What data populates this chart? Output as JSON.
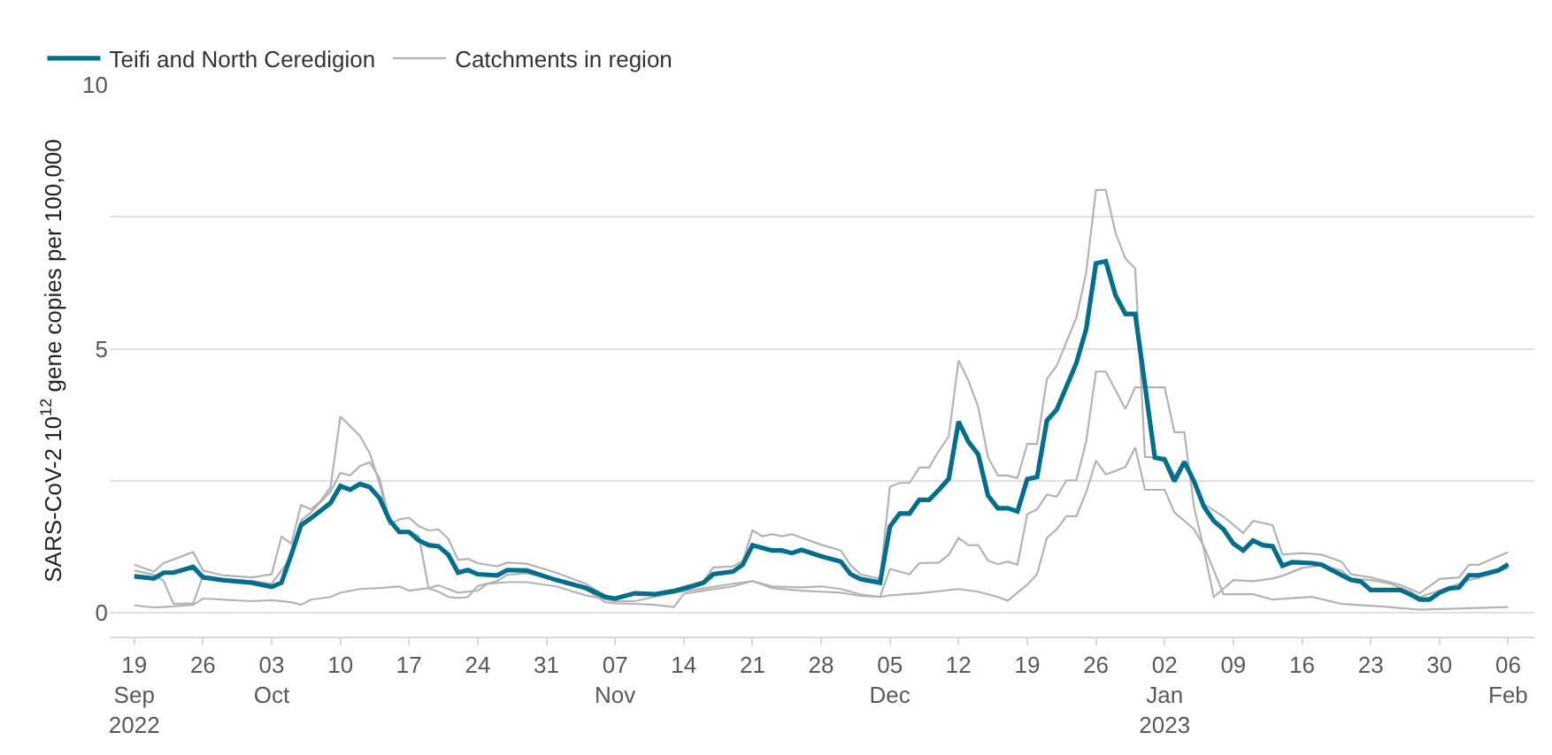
{
  "chart_data": {
    "type": "line",
    "ylabel": "SARS-CoV-2 10$^{12}$ gene copies per 100,000",
    "legend": "top left",
    "grid": "y",
    "marker": "none",
    "line_style": "solid",
    "xlim": [
      "2022-09-16T12:00",
      "2023-02-08T16:00"
    ],
    "ylim": [
      -0.45,
      10
    ],
    "yticks": [
      0,
      {
        "value": 2.5,
        "label": null
      },
      5,
      {
        "value": 7.5,
        "label": null
      },
      10
    ],
    "xticks": [
      {
        "value": "2022-09-19",
        "label": "19\nSep\n2022"
      },
      {
        "value": "2022-09-26",
        "label": "26"
      },
      {
        "value": "2022-10-03",
        "label": "03\nOct"
      },
      {
        "value": "2022-10-10",
        "label": "10"
      },
      {
        "value": "2022-10-17",
        "label": "17"
      },
      {
        "value": "2022-10-24",
        "label": "24"
      },
      {
        "value": "2022-10-31",
        "label": "31"
      },
      {
        "value": "2022-11-07",
        "label": "07\nNov"
      },
      {
        "value": "2022-11-14",
        "label": "14"
      },
      {
        "value": "2022-11-21",
        "label": "21"
      },
      {
        "value": "2022-11-28",
        "label": "28"
      },
      {
        "value": "2022-12-05",
        "label": "05\nDec"
      },
      {
        "value": "2022-12-12",
        "label": "12"
      },
      {
        "value": "2022-12-19",
        "label": "19"
      },
      {
        "value": "2022-12-26",
        "label": "26"
      },
      {
        "value": "2023-01-02",
        "label": "02\nJan\n2023"
      },
      {
        "value": "2023-01-09",
        "label": "09"
      },
      {
        "value": "2023-01-16",
        "label": "16"
      },
      {
        "value": "2023-01-23",
        "label": "23"
      },
      {
        "value": "2023-01-30",
        "label": "30"
      },
      {
        "value": "2023-02-06",
        "label": "06\nFeb"
      }
    ],
    "series": [
      {
        "name": "Catchments in region",
        "color": "#b3b3b3",
        "x": [
          "2022-09-19",
          "2022-09-21",
          "2022-09-22",
          "2022-09-25",
          "2022-09-26",
          "2022-09-28",
          "2022-10-01",
          "2022-10-03",
          "2022-10-04",
          "2022-10-05",
          "2022-10-06",
          "2022-10-07",
          "2022-10-08",
          "2022-10-09",
          "2022-10-10",
          "2022-10-12",
          "2022-10-13",
          "2022-10-14",
          "2022-10-15",
          "2022-10-16",
          "2022-10-17",
          "2022-10-18",
          "2022-10-19",
          "2022-10-20",
          "2022-10-21",
          "2022-10-22",
          "2022-10-23",
          "2022-10-24",
          "2022-10-26",
          "2022-10-27",
          "2022-10-29",
          "2022-11-01",
          "2022-11-04",
          "2022-11-06",
          "2022-11-07",
          "2022-11-09",
          "2022-11-11",
          "2022-11-13",
          "2022-11-15",
          "2022-11-16",
          "2022-11-17",
          "2022-11-19",
          "2022-11-20",
          "2022-11-21",
          "2022-11-22",
          "2022-11-23",
          "2022-11-24",
          "2022-11-25",
          "2022-11-26",
          "2022-11-28",
          "2022-11-30",
          "2022-12-01",
          "2022-12-02",
          "2022-12-04",
          "2022-12-05",
          "2022-12-06",
          "2022-12-07",
          "2022-12-08",
          "2022-12-09",
          "2022-12-10",
          "2022-12-11",
          "2022-12-12",
          "2022-12-13",
          "2022-12-14",
          "2022-12-15",
          "2022-12-16",
          "2022-12-17",
          "2022-12-18",
          "2022-12-19",
          "2022-12-20",
          "2022-12-21",
          "2022-12-22",
          "2022-12-24",
          "2022-12-25",
          "2022-12-26",
          "2022-12-27",
          "2022-12-28",
          "2022-12-29",
          "2022-12-30",
          "2022-12-31",
          "2023-01-02",
          "2023-01-03",
          "2023-01-04",
          "2023-01-05",
          "2023-01-06",
          "2023-01-08",
          "2023-01-10",
          "2023-01-11",
          "2023-01-13",
          "2023-01-14",
          "2023-01-16",
          "2023-01-18",
          "2023-01-20",
          "2023-01-21",
          "2023-01-23",
          "2023-01-26",
          "2023-01-28",
          "2023-01-30",
          "2023-02-01",
          "2023-02-02",
          "2023-02-03",
          "2023-02-06"
        ],
        "values": [
          0.91,
          0.78,
          0.94,
          1.15,
          0.8,
          0.71,
          0.67,
          0.73,
          1.44,
          1.31,
          2.04,
          1.96,
          2.12,
          2.38,
          3.72,
          3.35,
          3.02,
          2.45,
          1.67,
          1.77,
          1.8,
          1.64,
          1.56,
          1.58,
          1.4,
          1.0,
          1.02,
          0.94,
          0.88,
          0.95,
          0.93,
          0.76,
          0.55,
          0.32,
          0.28,
          0.38,
          0.37,
          0.44,
          0.55,
          0.6,
          0.86,
          0.88,
          0.98,
          1.56,
          1.45,
          1.49,
          1.45,
          1.49,
          1.42,
          1.29,
          1.18,
          0.9,
          0.73,
          0.64,
          2.39,
          2.46,
          2.46,
          2.75,
          2.75,
          3.07,
          3.34,
          4.78,
          4.4,
          3.9,
          2.95,
          2.6,
          2.6,
          2.55,
          3.2,
          3.2,
          4.43,
          4.68,
          5.59,
          6.44,
          8.01,
          8.01,
          7.19,
          6.71,
          6.52,
          2.95,
          2.95,
          2.6,
          2.85,
          2.49,
          2.06,
          1.82,
          1.51,
          1.74,
          1.66,
          1.1,
          1.13,
          1.1,
          0.97,
          0.73,
          0.67,
          0.53,
          0.37,
          0.64,
          0.67,
          0.91,
          0.91,
          1.15
        ]
      },
      {
        "color": "#b3b3b3",
        "x": [
          "2022-09-19",
          "2022-09-21",
          "2022-09-22",
          "2022-09-23",
          "2022-09-25",
          "2022-09-26",
          "2022-09-28",
          "2022-10-01",
          "2022-10-03",
          "2022-10-05",
          "2022-10-06",
          "2022-10-07",
          "2022-10-09",
          "2022-10-10",
          "2022-10-11",
          "2022-10-12",
          "2022-10-13",
          "2022-10-14",
          "2022-10-15",
          "2022-10-16",
          "2022-10-17",
          "2022-10-18",
          "2022-10-19",
          "2022-10-20",
          "2022-10-21",
          "2022-10-22",
          "2022-10-23",
          "2022-10-24",
          "2022-10-26",
          "2022-10-27",
          "2022-10-29",
          "2022-11-01",
          "2022-11-04",
          "2022-11-06",
          "2022-11-07",
          "2022-11-09",
          "2022-11-11",
          "2022-11-13",
          "2022-11-14",
          "2022-11-16",
          "2022-11-19",
          "2022-11-21",
          "2022-11-23",
          "2022-11-26",
          "2022-11-28",
          "2022-11-30",
          "2022-12-02",
          "2022-12-04",
          "2022-12-05",
          "2022-12-07",
          "2022-12-08",
          "2022-12-10",
          "2022-12-11",
          "2022-12-12",
          "2022-12-13",
          "2022-12-14",
          "2022-12-15",
          "2022-12-16",
          "2022-12-17",
          "2022-12-18",
          "2022-12-19",
          "2022-12-20",
          "2022-12-21",
          "2022-12-22",
          "2022-12-23",
          "2022-12-24",
          "2022-12-25",
          "2022-12-26",
          "2022-12-27",
          "2022-12-29",
          "2022-12-30",
          "2023-01-02",
          "2023-01-03",
          "2023-01-04",
          "2023-01-05",
          "2023-01-06",
          "2023-01-07",
          "2023-01-09",
          "2023-01-11",
          "2023-01-13",
          "2023-01-14",
          "2023-01-16",
          "2023-01-18",
          "2023-01-20",
          "2023-01-21",
          "2023-01-23",
          "2023-01-25",
          "2023-01-27",
          "2023-01-28",
          "2023-01-30",
          "2023-02-01",
          "2023-02-02",
          "2023-02-03",
          "2023-02-06"
        ],
        "values": [
          0.8,
          0.72,
          0.6,
          0.17,
          0.18,
          0.7,
          0.63,
          0.6,
          0.55,
          1.05,
          1.75,
          1.9,
          2.3,
          2.65,
          2.6,
          2.78,
          2.85,
          2.55,
          1.75,
          1.55,
          1.55,
          1.45,
          0.46,
          0.4,
          0.3,
          0.28,
          0.3,
          0.51,
          0.6,
          0.72,
          0.75,
          0.62,
          0.45,
          0.2,
          0.18,
          0.17,
          0.15,
          0.11,
          0.36,
          0.42,
          0.5,
          0.6,
          0.47,
          0.42,
          0.4,
          0.38,
          0.32,
          0.3,
          0.83,
          0.73,
          0.94,
          0.95,
          1.1,
          1.42,
          1.28,
          1.28,
          0.99,
          0.92,
          0.97,
          0.91,
          1.87,
          1.96,
          2.24,
          2.2,
          2.51,
          2.51,
          3.24,
          4.57,
          4.57,
          3.86,
          4.27,
          4.27,
          3.42,
          3.42,
          2.0,
          1.2,
          0.3,
          0.62,
          0.6,
          0.65,
          0.7,
          0.85,
          0.9,
          0.8,
          0.65,
          0.62,
          0.55,
          0.4,
          0.3,
          0.42,
          0.55,
          0.62,
          0.66,
          0.85
        ]
      },
      {
        "color": "#b3b3b3",
        "x": [
          "2022-09-19",
          "2022-09-21",
          "2022-09-23",
          "2022-09-25",
          "2022-09-26",
          "2022-09-28",
          "2022-10-01",
          "2022-10-03",
          "2022-10-05",
          "2022-10-06",
          "2022-10-07",
          "2022-10-09",
          "2022-10-10",
          "2022-10-12",
          "2022-10-14",
          "2022-10-16",
          "2022-10-17",
          "2022-10-19",
          "2022-10-20",
          "2022-10-21",
          "2022-10-22",
          "2022-10-24",
          "2022-10-25",
          "2022-10-27",
          "2022-10-29",
          "2022-11-01",
          "2022-11-04",
          "2022-11-07",
          "2022-11-09",
          "2022-11-11",
          "2022-11-13",
          "2022-11-16",
          "2022-11-19",
          "2022-11-21",
          "2022-11-23",
          "2022-11-26",
          "2022-11-28",
          "2022-11-30",
          "2022-12-02",
          "2022-12-04",
          "2022-12-05",
          "2022-12-08",
          "2022-12-12",
          "2022-12-14",
          "2022-12-16",
          "2022-12-17",
          "2022-12-19",
          "2022-12-20",
          "2022-12-21",
          "2022-12-22",
          "2022-12-23",
          "2022-12-24",
          "2022-12-25",
          "2022-12-26",
          "2022-12-27",
          "2022-12-29",
          "2022-12-30",
          "2022-12-31",
          "2023-01-02",
          "2023-01-03",
          "2023-01-05",
          "2023-01-06",
          "2023-01-08",
          "2023-01-09",
          "2023-01-11",
          "2023-01-13",
          "2023-01-17",
          "2023-01-20",
          "2023-01-24",
          "2023-01-28",
          "2023-02-06"
        ],
        "values": [
          0.14,
          0.1,
          0.12,
          0.15,
          0.27,
          0.25,
          0.22,
          0.24,
          0.2,
          0.15,
          0.25,
          0.3,
          0.38,
          0.45,
          0.47,
          0.5,
          0.42,
          0.47,
          0.52,
          0.45,
          0.38,
          0.42,
          0.55,
          0.58,
          0.58,
          0.5,
          0.33,
          0.22,
          0.22,
          0.3,
          0.38,
          0.46,
          0.55,
          0.6,
          0.5,
          0.48,
          0.5,
          0.45,
          0.35,
          0.3,
          0.33,
          0.37,
          0.45,
          0.4,
          0.3,
          0.23,
          0.53,
          0.73,
          1.42,
          1.58,
          1.83,
          1.83,
          2.28,
          2.88,
          2.62,
          2.76,
          3.13,
          2.33,
          2.33,
          1.9,
          1.58,
          1.26,
          0.35,
          0.35,
          0.35,
          0.25,
          0.3,
          0.17,
          0.12,
          0.06,
          0.11
        ]
      },
      {
        "name": "Teifi and North Ceredigion",
        "color": "#006e8c",
        "x": [
          "2022-09-19",
          "2022-09-21",
          "2022-09-22",
          "2022-09-23",
          "2022-09-25",
          "2022-09-26",
          "2022-09-28",
          "2022-10-01",
          "2022-10-03",
          "2022-10-04",
          "2022-10-05",
          "2022-10-06",
          "2022-10-07",
          "2022-10-09",
          "2022-10-10",
          "2022-10-11",
          "2022-10-12",
          "2022-10-13",
          "2022-10-14",
          "2022-10-15",
          "2022-10-16",
          "2022-10-17",
          "2022-10-18",
          "2022-10-19",
          "2022-10-20",
          "2022-10-21",
          "2022-10-22",
          "2022-10-23",
          "2022-10-24",
          "2022-10-26",
          "2022-10-27",
          "2022-10-29",
          "2022-11-01",
          "2022-11-04",
          "2022-11-06",
          "2022-11-07",
          "2022-11-09",
          "2022-11-11",
          "2022-11-13",
          "2022-11-15",
          "2022-11-16",
          "2022-11-17",
          "2022-11-19",
          "2022-11-20",
          "2022-11-21",
          "2022-11-22",
          "2022-11-23",
          "2022-11-24",
          "2022-11-25",
          "2022-11-26",
          "2022-11-28",
          "2022-11-30",
          "2022-12-01",
          "2022-12-02",
          "2022-12-04",
          "2022-12-05",
          "2022-12-06",
          "2022-12-07",
          "2022-12-08",
          "2022-12-09",
          "2022-12-10",
          "2022-12-11",
          "2022-12-12",
          "2022-12-13",
          "2022-12-14",
          "2022-12-15",
          "2022-12-16",
          "2022-12-17",
          "2022-12-18",
          "2022-12-19",
          "2022-12-20",
          "2022-12-21",
          "2022-12-22",
          "2022-12-24",
          "2022-12-25",
          "2022-12-26",
          "2022-12-27",
          "2022-12-28",
          "2022-12-29",
          "2022-12-30",
          "2023-01-01",
          "2023-01-02",
          "2023-01-03",
          "2023-01-04",
          "2023-01-05",
          "2023-01-06",
          "2023-01-07",
          "2023-01-08",
          "2023-01-09",
          "2023-01-10",
          "2023-01-11",
          "2023-01-12",
          "2023-01-13",
          "2023-01-14",
          "2023-01-15",
          "2023-01-17",
          "2023-01-18",
          "2023-01-19",
          "2023-01-21",
          "2023-01-22",
          "2023-01-23",
          "2023-01-26",
          "2023-01-27",
          "2023-01-28",
          "2023-01-29",
          "2023-01-30",
          "2023-01-31",
          "2023-02-01",
          "2023-02-02",
          "2023-02-03",
          "2023-02-05",
          "2023-02-06"
        ],
        "values": [
          0.69,
          0.65,
          0.76,
          0.76,
          0.87,
          0.67,
          0.62,
          0.57,
          0.49,
          0.57,
          1.1,
          1.66,
          1.79,
          2.08,
          2.4,
          2.33,
          2.44,
          2.38,
          2.17,
          1.76,
          1.53,
          1.53,
          1.37,
          1.28,
          1.26,
          1.1,
          0.76,
          0.81,
          0.73,
          0.71,
          0.81,
          0.8,
          0.62,
          0.47,
          0.3,
          0.27,
          0.37,
          0.35,
          0.41,
          0.51,
          0.57,
          0.73,
          0.78,
          0.91,
          1.28,
          1.23,
          1.18,
          1.18,
          1.13,
          1.19,
          1.07,
          0.97,
          0.73,
          0.64,
          0.57,
          1.63,
          1.88,
          1.88,
          2.14,
          2.14,
          2.33,
          2.54,
          3.62,
          3.24,
          3.0,
          2.22,
          1.98,
          1.98,
          1.92,
          2.53,
          2.57,
          3.64,
          3.85,
          4.73,
          5.37,
          6.62,
          6.66,
          6.01,
          5.66,
          5.66,
          2.94,
          2.9,
          2.49,
          2.86,
          2.49,
          2.01,
          1.74,
          1.58,
          1.31,
          1.18,
          1.37,
          1.28,
          1.26,
          0.89,
          0.96,
          0.94,
          0.91,
          0.81,
          0.62,
          0.59,
          0.43,
          0.43,
          0.35,
          0.25,
          0.25,
          0.38,
          0.46,
          0.48,
          0.71,
          0.71,
          0.8,
          0.92
        ]
      }
    ]
  }
}
